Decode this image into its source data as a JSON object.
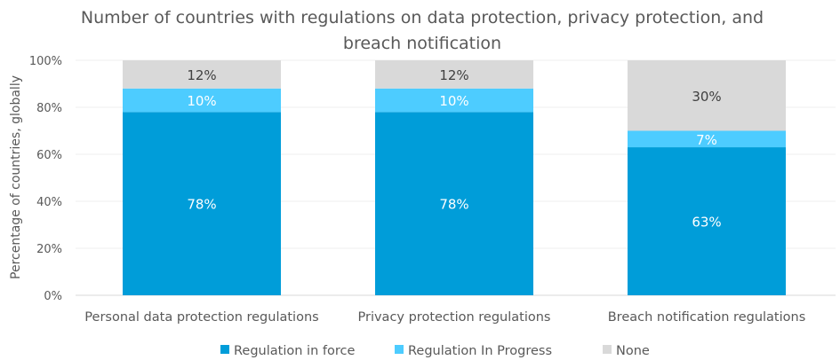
{
  "chart_data": {
    "type": "stacked-bar",
    "title": "Number of countries with regulations on data protection, privacy protection, and breach notification",
    "title_lines": [
      "Number of countries with regulations on data protection, privacy protection, and",
      "breach notification"
    ],
    "xlabel": "",
    "ylabel": "Percentage of countries, globally",
    "ylim": [
      0,
      100
    ],
    "yticks": [
      0,
      20,
      40,
      60,
      80,
      100
    ],
    "ytick_labels": [
      "0%",
      "20%",
      "40%",
      "60%",
      "80%",
      "100%"
    ],
    "grid": true,
    "legend_position": "bottom",
    "categories": [
      "Personal data protection regulations",
      "Privacy protection regulations",
      "Breach notification regulations"
    ],
    "series": [
      {
        "name": "Regulation in force",
        "color": "#009DD9",
        "label_color": "#FFFFFF",
        "values": [
          78,
          78,
          63
        ],
        "labels": [
          "78%",
          "78%",
          "63%"
        ]
      },
      {
        "name": "Regulation In Progress",
        "color": "#4DCCFF",
        "label_color": "#FFFFFF",
        "values": [
          10,
          10,
          7
        ],
        "labels": [
          "10%",
          "10%",
          "7%"
        ]
      },
      {
        "name": "None",
        "color": "#D9D9D9",
        "label_color": "#404040",
        "values": [
          12,
          12,
          30
        ],
        "labels": [
          "12%",
          "12%",
          "30%"
        ]
      }
    ]
  }
}
